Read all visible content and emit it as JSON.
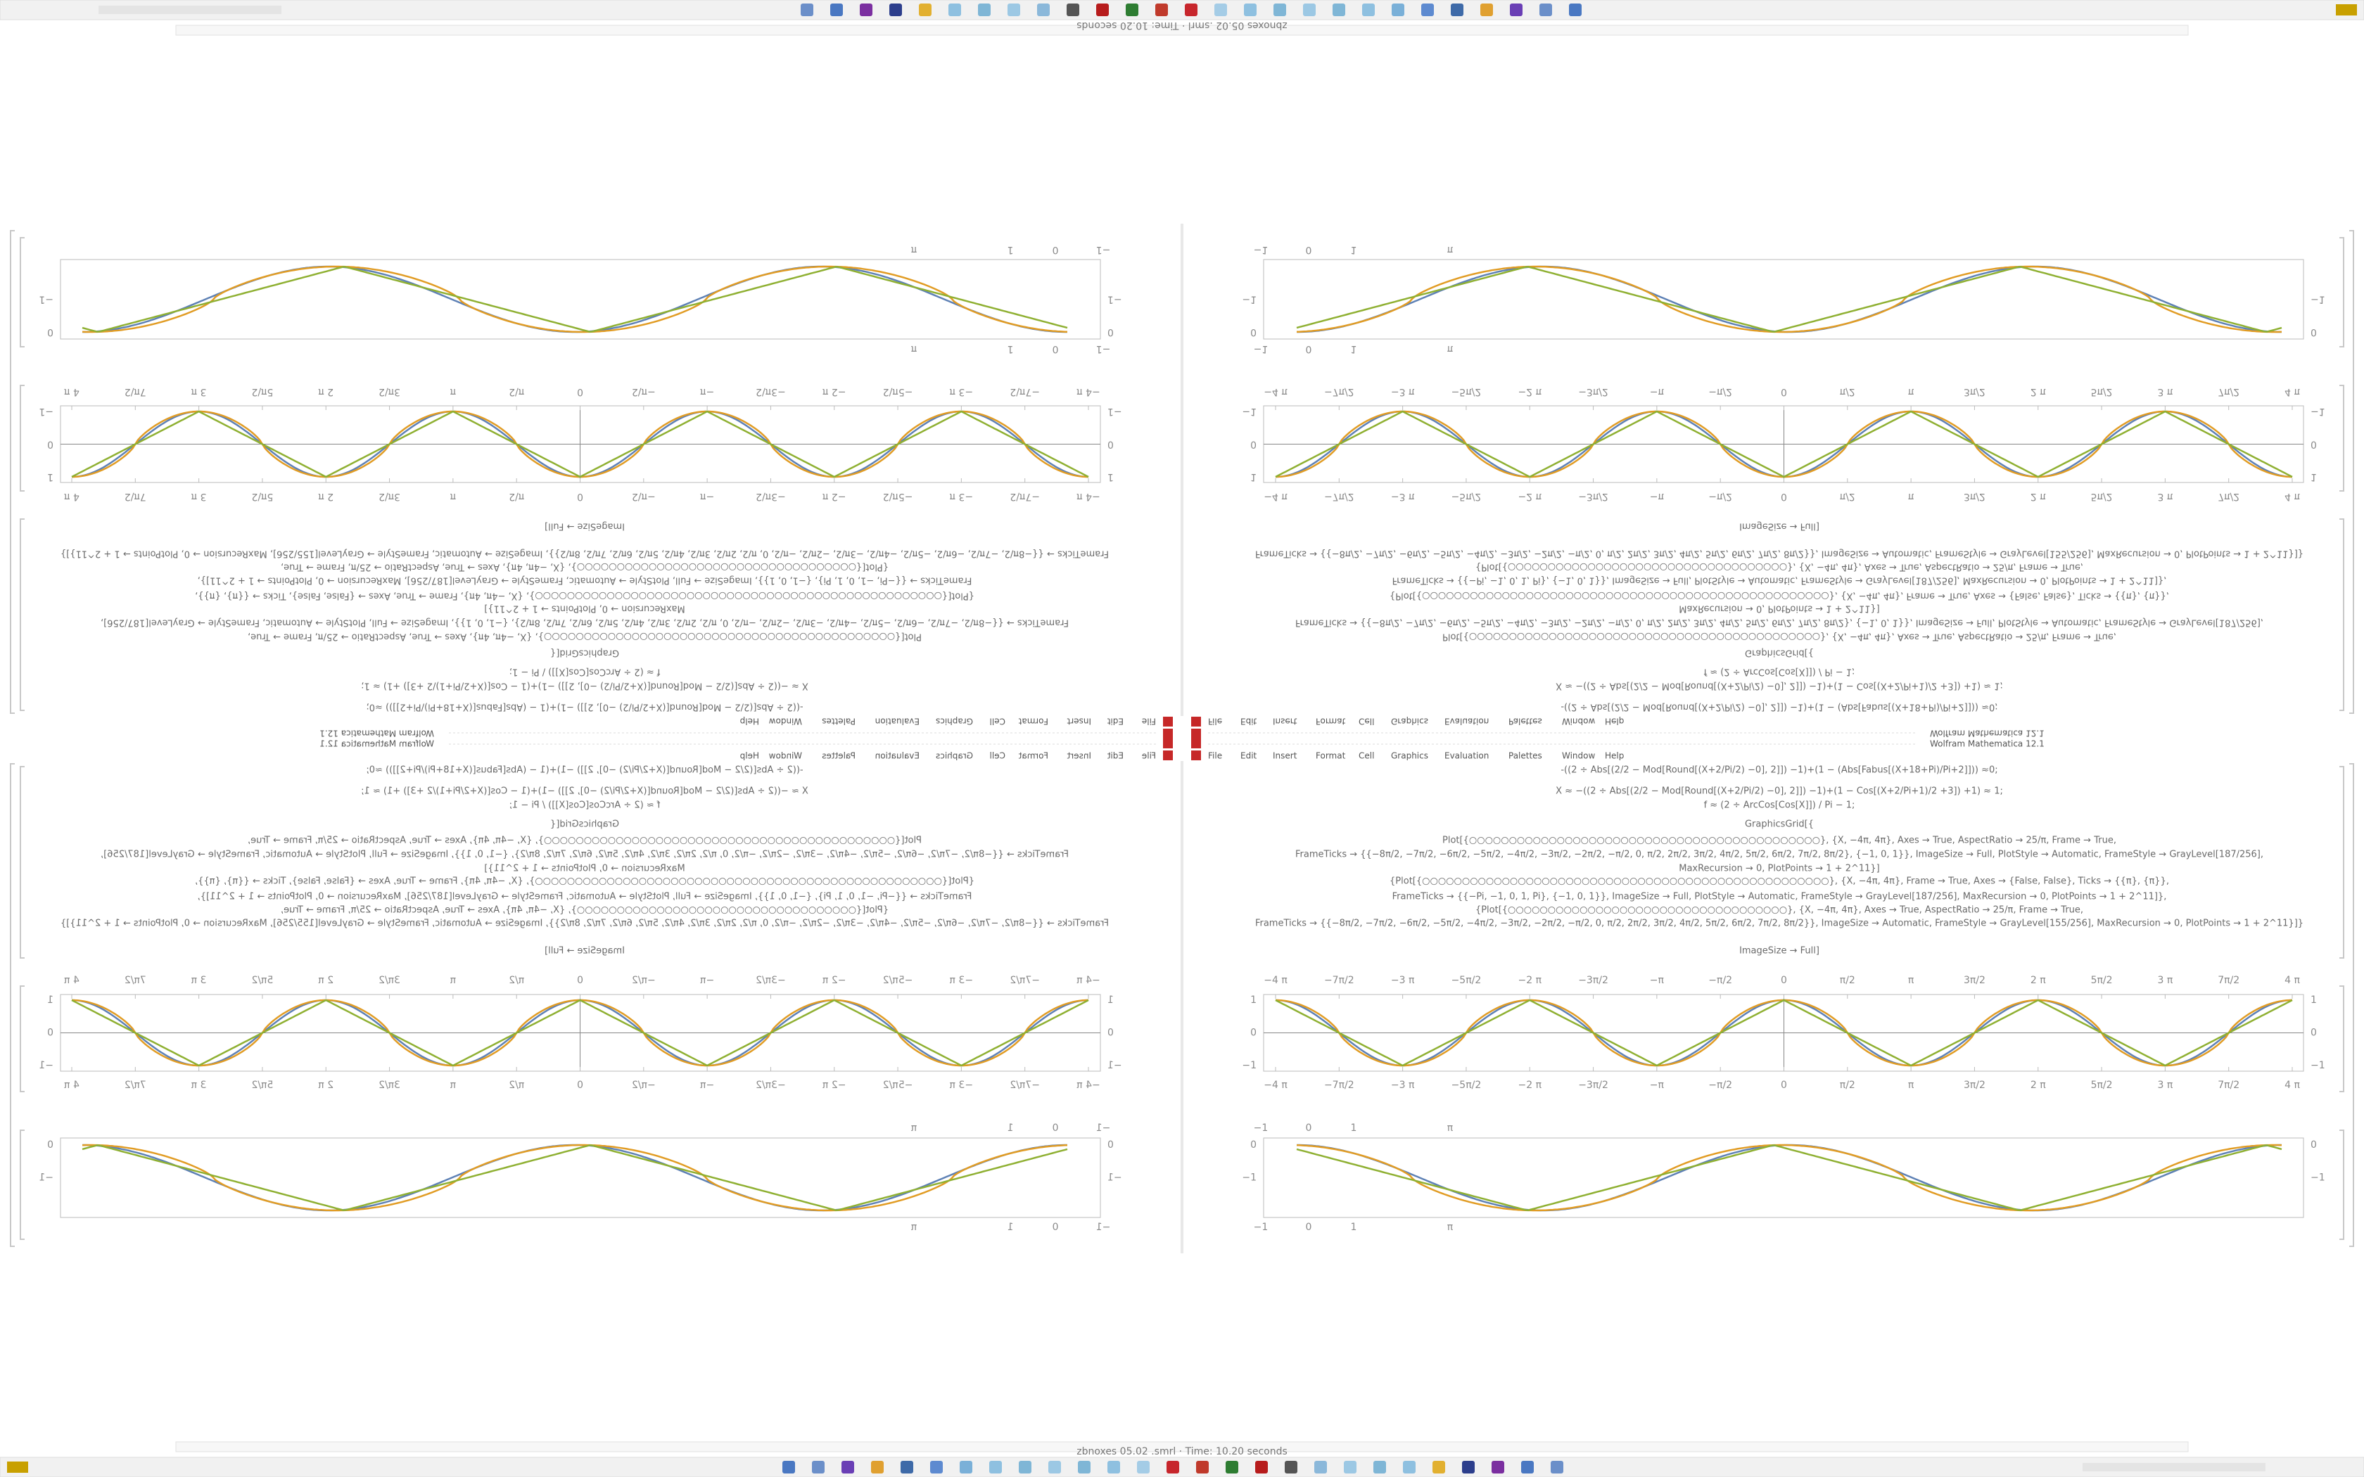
{
  "window_title": "zbnoxes 05.02 .smrl · Time: 10.20 seconds",
  "status": "Wolfram Mathematica 12.1",
  "menu": [
    "File",
    "Edit",
    "Insert",
    "Format",
    "Cell",
    "Graphics",
    "Evaluation",
    "Palettes",
    "Window",
    "Help"
  ],
  "curve_colors": [
    "#5e81b5",
    "#e19c24",
    "#8fb032"
  ],
  "notebook": {
    "code": [
      "-((2 ÷ Abs[(2/2 − Mod[Round[(X+2/Pi/2) −0], 2]]) −1)+(1 − (Abs[Fabus[(X+18+Pi)/Pi+2]])) ≈0;",
      "X ≈ −((2 ÷ Abs[(2/2 − Mod[Round[(X+2/Pi/2) −0], 2]]) −1)+(1 − Cos[(X+2/Pi+1)/2 +3]) +1) ≈ 1;",
      "f ≈ (2 ÷ ArcCos[Cos[X]]) / Pi − 1;",
      "GraphicsGrid[{",
      "Plot[{○○○○○○○○○○○○○○○○○○○○○○○○○○○○○○○○○○○○○○○○○○○○}, {X, −4π, 4π}, Axes → True, AspectRatio → 25/π, Frame → True,",
      "FrameTicks → {{−8π/2, −7π/2, −6π/2, −5π/2, −4π/2, −3π/2, −2π/2, −π/2, 0, π/2, 2π/2, 3π/2, 4π/2, 5π/2, 6π/2, 7π/2, 8π/2}, {−1, 0, 1}}, ImageSize → Full, PlotStyle → Automatic, FrameStyle → GrayLevel[187/256],",
      "MaxRecursion → 0, PlotPoints → 1 + 2^11}]",
      "{Plot[{○○○○○○○○○○○○○○○○○○○○○○○○○○○○○○○○○○○○○○○○○○○○○○○○○○○}, {X, −4π, 4π}, Frame → True, Axes → {False, False}, Ticks → {{π}, {π}},",
      "FrameTicks → {{−Pi, −1, 0, 1, Pi}, {−1, 0, 1}}, ImageSize → Full, PlotStyle → Automatic, FrameStyle → GrayLevel[187/256], MaxRecursion → 0, PlotPoints → 1 + 2^11]},",
      "{Plot[{○○○○○○○○○○○○○○○○○○○○○○○○○○○○○○○○○○○}, {X, −4π, 4π}, Axes → True, AspectRatio → 25/π, Frame → True,",
      "FrameTicks → {{−8π/2, −7π/2, −6π/2, −5π/2, −4π/2, −3π/2, −2π/2, −π/2, 0, π/2, 2π/2, 3π/2, 4π/2, 5π/2, 6π/2, 7π/2, 8π/2}}, ImageSize → Automatic, FrameStyle → GrayLevel[155/256], MaxRecursion → 0, PlotPoints → 1 + 2^11}]}",
      "ImageSize → Full]"
    ],
    "plot1": {
      "xticks": [
        "−4 π",
        "−7π/2",
        "−3 π",
        "−5π/2",
        "−2 π",
        "−3π/2",
        "−π",
        "−π/2",
        "0",
        "π/2",
        "π",
        "3π/2",
        "2 π",
        "5π/2",
        "3 π",
        "7π/2",
        "4 π"
      ],
      "yticks": [
        "1",
        "0",
        "−1"
      ]
    },
    "plot2": {
      "xticks": [
        "−1",
        "0",
        "1",
        "π"
      ],
      "yticks": [
        "0",
        "−1"
      ]
    }
  }
}
